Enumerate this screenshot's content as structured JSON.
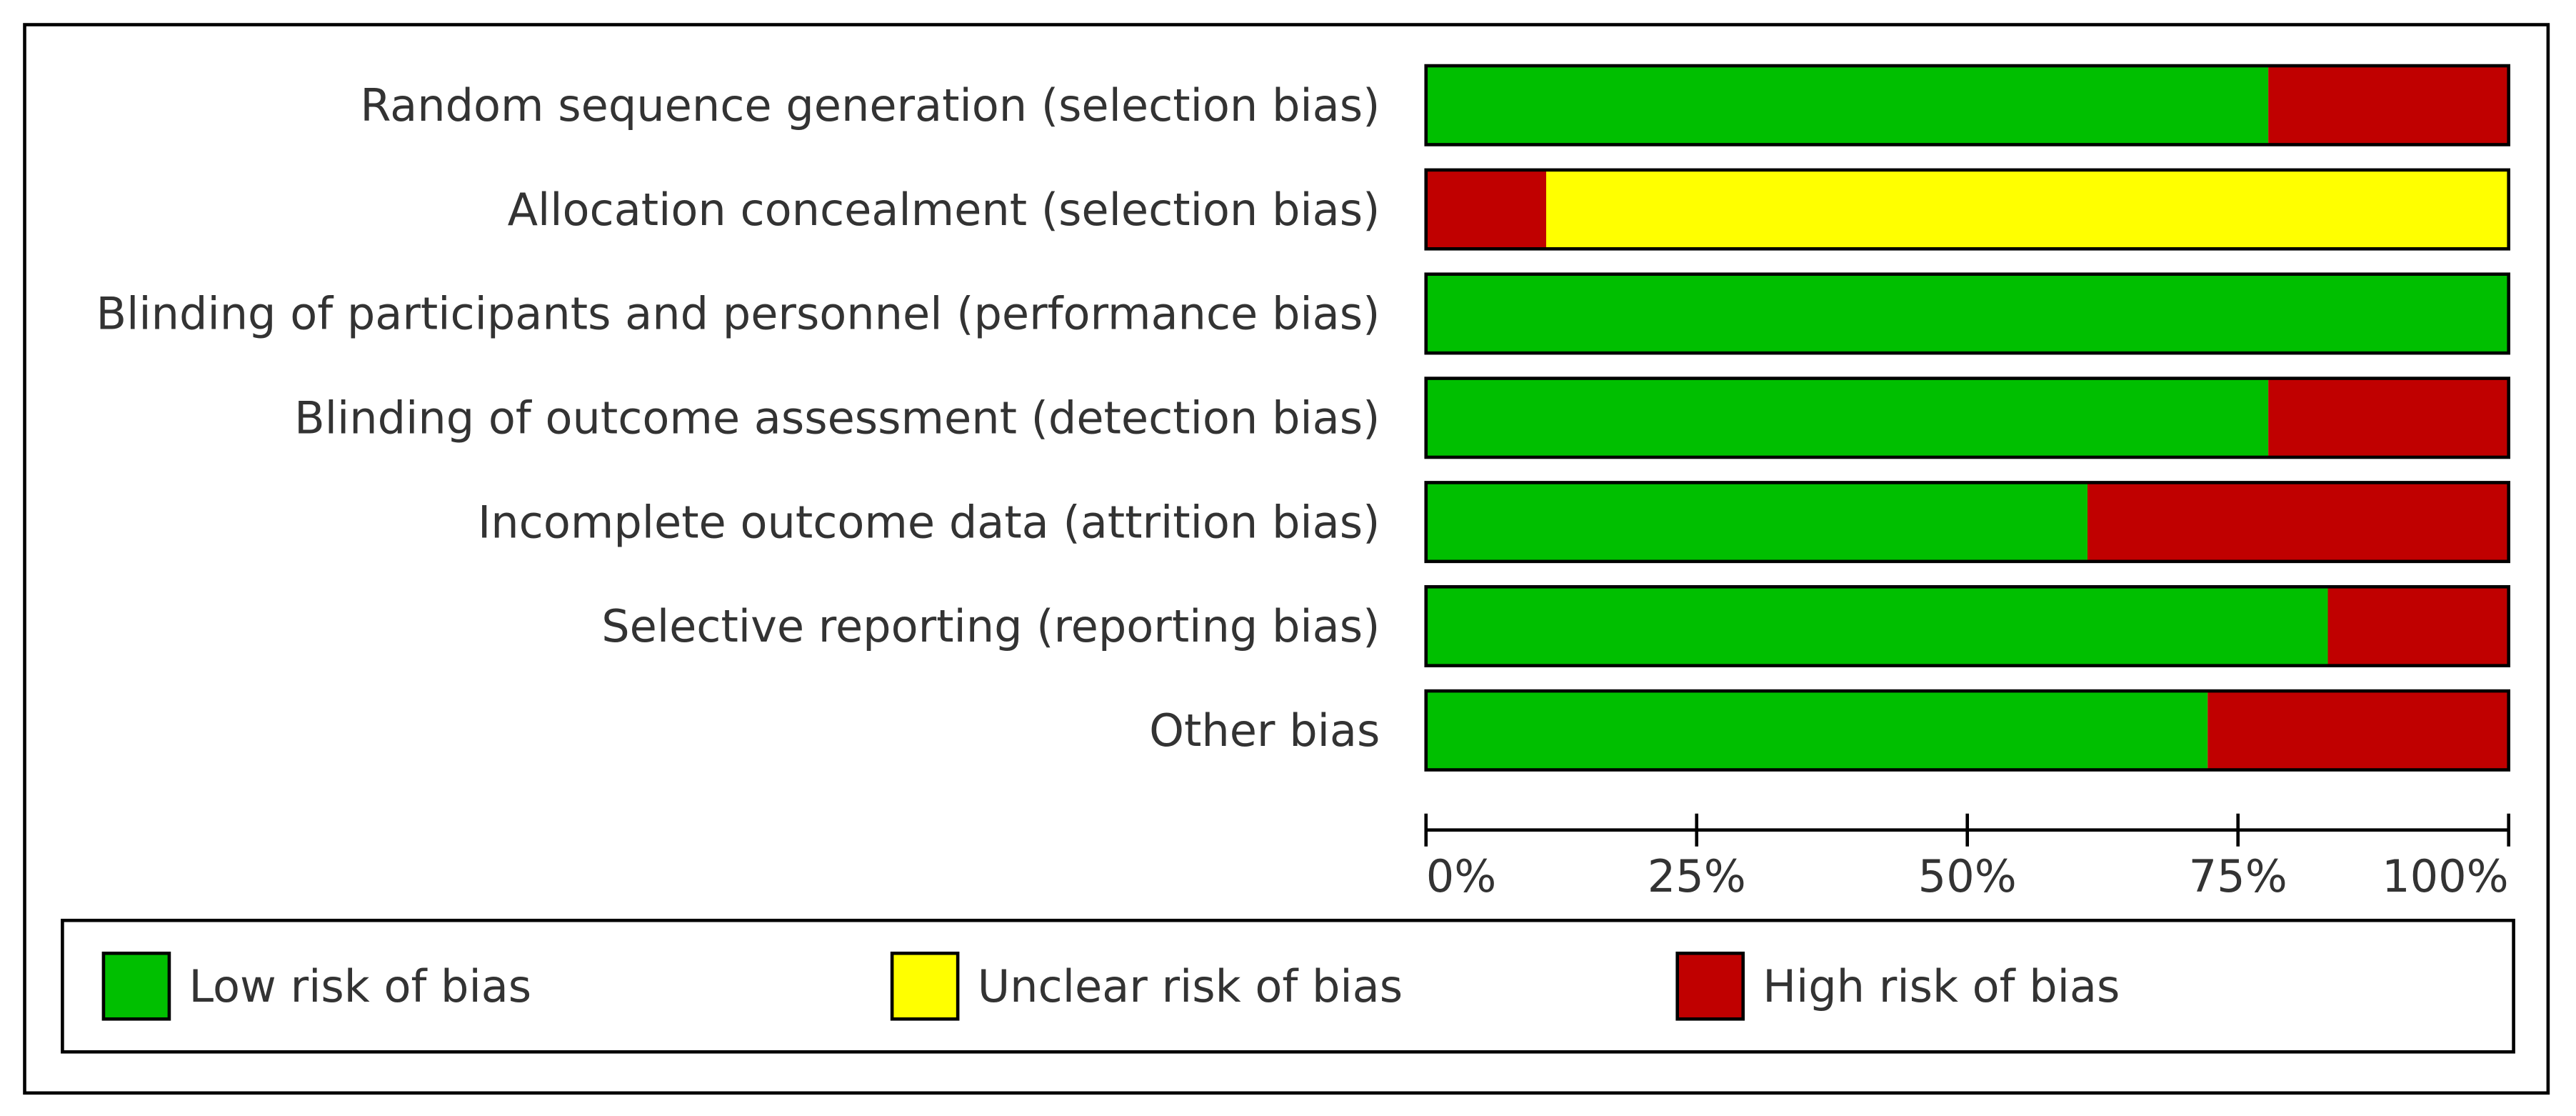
{
  "chart_data": {
    "type": "stacked_barh",
    "categories": [
      "Random sequence generation (selection bias)",
      "Allocation concealment (selection bias)",
      "Blinding of participants and personnel (performance bias)",
      "Blinding of outcome assessment (detection bias)",
      "Incomplete outcome data (attrition bias)",
      "Selective reporting (reporting bias)",
      "Other bias"
    ],
    "series": [
      {
        "name": "Low risk of bias",
        "color": "#00bf00",
        "values": [
          77.8,
          0,
          100,
          77.8,
          61.1,
          83.3,
          72.2
        ]
      },
      {
        "name": "Unclear risk of bias",
        "color": "#ffff00",
        "values": [
          0,
          88.9,
          0,
          0,
          0,
          0,
          0
        ]
      },
      {
        "name": "High risk of bias",
        "color": "#c00000",
        "values": [
          22.2,
          11.1,
          0,
          22.2,
          38.9,
          16.7,
          27.8
        ]
      }
    ],
    "stack_order": [
      0,
      2,
      1
    ],
    "xlim": [
      0,
      100
    ],
    "xticks": [
      {
        "value": 0,
        "label": "0%"
      },
      {
        "value": 25,
        "label": "25%"
      },
      {
        "value": 50,
        "label": "50%"
      },
      {
        "value": 75,
        "label": "75%"
      },
      {
        "value": 100,
        "label": "100%"
      }
    ]
  }
}
